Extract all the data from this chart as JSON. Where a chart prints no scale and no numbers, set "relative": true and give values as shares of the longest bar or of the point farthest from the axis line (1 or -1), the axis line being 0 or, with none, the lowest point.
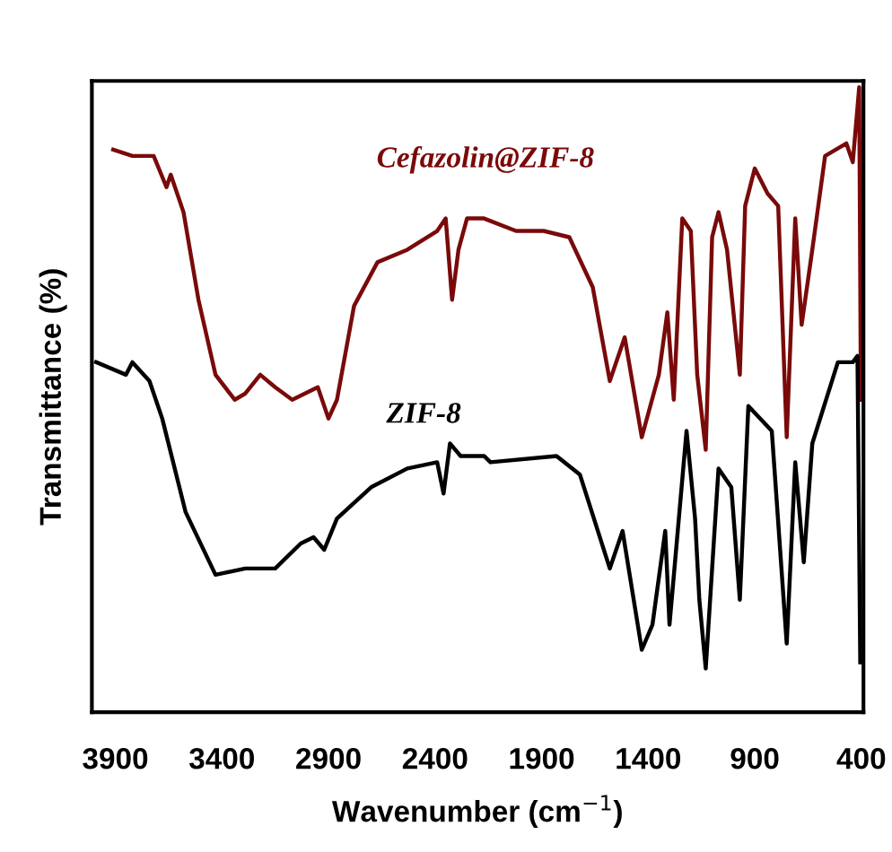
{
  "chart_data": {
    "type": "line",
    "relative": true,
    "xlabel": "Wavenumber (cm$^{−1}$)",
    "ylabel": "Transmittance (%)",
    "xlim": [
      4010,
      390
    ],
    "xticks": [
      3900,
      3400,
      2900,
      2400,
      1900,
      1400,
      900,
      400
    ],
    "grid": false,
    "legend": false,
    "tick_labels": "x",
    "marker": "none",
    "line_style": "solid",
    "series": [
      {
        "name": "Cefazolin@ZIF-8",
        "color": "#7a0a0a",
        "x": [
          3910,
          3820,
          3770,
          3720,
          3660,
          3640,
          3580,
          3510,
          3430,
          3340,
          3290,
          3220,
          3150,
          3070,
          2950,
          2900,
          2860,
          2780,
          2670,
          2530,
          2390,
          2350,
          2320,
          2290,
          2250,
          2170,
          2020,
          1890,
          1770,
          1660,
          1580,
          1510,
          1430,
          1350,
          1310,
          1280,
          1240,
          1200,
          1170,
          1130,
          1100,
          1070,
          1030,
          970,
          945,
          900,
          840,
          790,
          750,
          710,
          680,
          630,
          570,
          470,
          440,
          410,
          402
        ],
        "values": [
          0.9,
          0.89,
          0.89,
          0.89,
          0.84,
          0.86,
          0.8,
          0.66,
          0.54,
          0.5,
          0.51,
          0.54,
          0.52,
          0.5,
          0.52,
          0.47,
          0.5,
          0.65,
          0.72,
          0.74,
          0.77,
          0.79,
          0.66,
          0.74,
          0.79,
          0.79,
          0.77,
          0.77,
          0.76,
          0.68,
          0.53,
          0.6,
          0.44,
          0.54,
          0.64,
          0.5,
          0.79,
          0.77,
          0.54,
          0.42,
          0.76,
          0.8,
          0.74,
          0.54,
          0.81,
          0.87,
          0.83,
          0.81,
          0.44,
          0.79,
          0.62,
          0.74,
          0.89,
          0.91,
          0.88,
          1.0,
          0.5
        ]
      },
      {
        "name": "ZIF-8",
        "color": "#000000",
        "x": [
          3990,
          3850,
          3820,
          3740,
          3680,
          3570,
          3430,
          3290,
          3150,
          3030,
          2970,
          2920,
          2860,
          2700,
          2530,
          2390,
          2360,
          2330,
          2280,
          2170,
          2140,
          1830,
          1720,
          1580,
          1520,
          1430,
          1380,
          1320,
          1300,
          1220,
          1180,
          1160,
          1130,
          1070,
          1010,
          970,
          930,
          820,
          750,
          710,
          670,
          630,
          510,
          440,
          418,
          405
        ],
        "values": [
          0.56,
          0.54,
          0.56,
          0.53,
          0.47,
          0.32,
          0.22,
          0.23,
          0.23,
          0.27,
          0.28,
          0.26,
          0.31,
          0.36,
          0.39,
          0.4,
          0.35,
          0.43,
          0.41,
          0.41,
          0.4,
          0.41,
          0.38,
          0.23,
          0.29,
          0.1,
          0.14,
          0.29,
          0.14,
          0.45,
          0.31,
          0.18,
          0.07,
          0.39,
          0.36,
          0.18,
          0.49,
          0.45,
          0.11,
          0.4,
          0.24,
          0.43,
          0.56,
          0.56,
          0.57,
          0.08
        ]
      }
    ]
  }
}
